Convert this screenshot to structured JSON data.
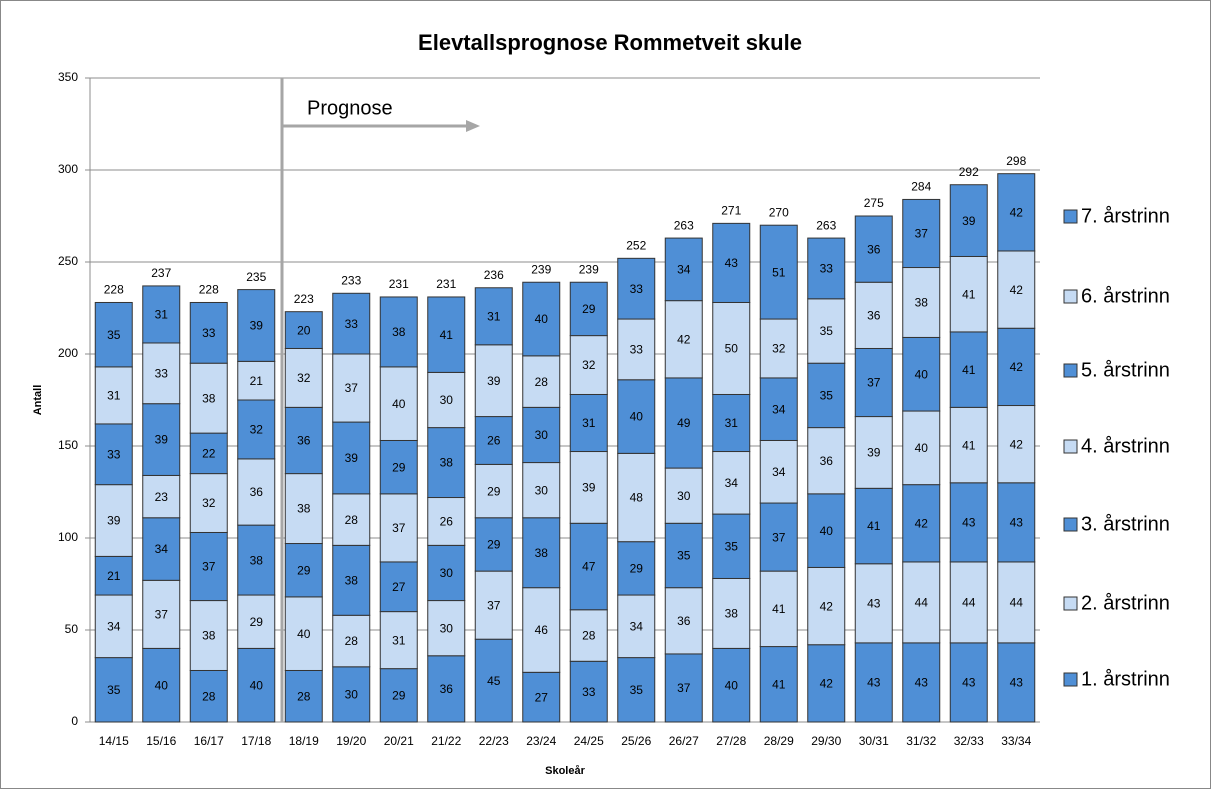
{
  "chart_data": {
    "type": "stacked_bar",
    "title": "Elevtallsprognose Rommetveit skule",
    "x_label": "Skoleår",
    "y_label": "Antall",
    "annotation": "Prognose",
    "categories": [
      "14/15",
      "15/16",
      "16/17",
      "17/18",
      "18/19",
      "19/20",
      "20/21",
      "21/22",
      "22/23",
      "23/24",
      "24/25",
      "25/26",
      "26/27",
      "27/28",
      "28/29",
      "29/30",
      "30/31",
      "31/32",
      "32/33",
      "33/34"
    ],
    "series": [
      {
        "name": "1. årstrinn",
        "color": "#4f8fd6",
        "values": [
          35,
          40,
          28,
          40,
          28,
          30,
          29,
          36,
          45,
          27,
          33,
          35,
          37,
          40,
          41,
          42,
          43,
          43,
          43,
          43
        ]
      },
      {
        "name": "2. årstrinn",
        "color": "#c6dbf3",
        "values": [
          34,
          37,
          38,
          29,
          40,
          28,
          31,
          30,
          37,
          46,
          28,
          34,
          36,
          38,
          41,
          42,
          43,
          44,
          44,
          44
        ]
      },
      {
        "name": "3. årstrinn",
        "color": "#4f8fd6",
        "values": [
          21,
          34,
          37,
          38,
          29,
          38,
          27,
          30,
          29,
          38,
          47,
          29,
          35,
          35,
          37,
          40,
          41,
          42,
          43,
          43
        ]
      },
      {
        "name": "4. årstrinn",
        "color": "#c6dbf3",
        "values": [
          39,
          23,
          32,
          36,
          38,
          28,
          37,
          26,
          29,
          30,
          39,
          48,
          30,
          34,
          34,
          36,
          39,
          40,
          41,
          42
        ]
      },
      {
        "name": "5. årstrinn",
        "color": "#4f8fd6",
        "values": [
          33,
          39,
          22,
          32,
          36,
          39,
          29,
          38,
          26,
          30,
          31,
          40,
          49,
          31,
          34,
          35,
          37,
          40,
          41,
          42
        ]
      },
      {
        "name": "6. årstrinn",
        "color": "#c6dbf3",
        "values": [
          31,
          33,
          38,
          21,
          32,
          37,
          40,
          30,
          39,
          28,
          32,
          33,
          42,
          50,
          32,
          35,
          36,
          38,
          41,
          42
        ]
      },
      {
        "name": "7. årstrinn",
        "color": "#4f8fd6",
        "values": [
          35,
          31,
          33,
          39,
          20,
          33,
          38,
          41,
          31,
          40,
          29,
          33,
          34,
          43,
          51,
          33,
          36,
          37,
          39,
          42
        ]
      }
    ],
    "totals": [
      228,
      237,
      228,
      235,
      223,
      233,
      231,
      231,
      236,
      239,
      239,
      252,
      263,
      271,
      270,
      263,
      275,
      284,
      292,
      298
    ],
    "ylim": [
      0,
      350
    ],
    "yticks": [
      0,
      50,
      100,
      150,
      200,
      250,
      300,
      350
    ],
    "grid": true
  }
}
